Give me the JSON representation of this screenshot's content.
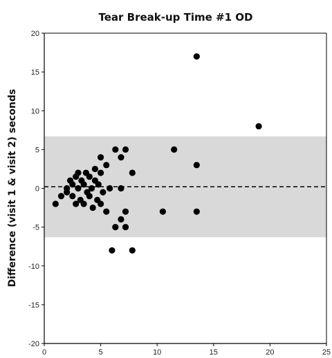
{
  "chart_data": {
    "type": "scatter",
    "title": "Tear Break-up Time #1 OD",
    "xlabel": "",
    "ylabel": "Difference (visit 1 & visit 2) seconds",
    "xlim": [
      0,
      25
    ],
    "ylim": [
      -20,
      20
    ],
    "xticks": [
      0,
      5,
      10,
      15,
      20,
      25
    ],
    "yticks": [
      -20,
      -15,
      -10,
      -5,
      0,
      5,
      10,
      15,
      20
    ],
    "grid": false,
    "limits_band": {
      "lower": -6.3,
      "upper": 6.7,
      "color": "#d9d9d9"
    },
    "mean_line": {
      "y": 0.2,
      "style": "dashed"
    },
    "marker_color": "#000000",
    "points": [
      {
        "x": 1.0,
        "y": -2.0
      },
      {
        "x": 1.5,
        "y": -1.0
      },
      {
        "x": 2.0,
        "y": 0.0
      },
      {
        "x": 2.0,
        "y": -0.5
      },
      {
        "x": 2.3,
        "y": 1.0
      },
      {
        "x": 2.5,
        "y": 0.5
      },
      {
        "x": 2.5,
        "y": -1.0
      },
      {
        "x": 2.8,
        "y": 1.5
      },
      {
        "x": 2.8,
        "y": -2.0
      },
      {
        "x": 3.0,
        "y": 0.0
      },
      {
        "x": 3.0,
        "y": 2.0
      },
      {
        "x": 3.2,
        "y": -1.5
      },
      {
        "x": 3.3,
        "y": 1.0
      },
      {
        "x": 3.5,
        "y": 0.5
      },
      {
        "x": 3.5,
        "y": -2.0
      },
      {
        "x": 3.7,
        "y": 2.0
      },
      {
        "x": 3.8,
        "y": -0.5
      },
      {
        "x": 4.0,
        "y": 1.5
      },
      {
        "x": 4.0,
        "y": -1.0
      },
      {
        "x": 4.2,
        "y": 0.0
      },
      {
        "x": 4.3,
        "y": -2.5
      },
      {
        "x": 4.5,
        "y": 2.5
      },
      {
        "x": 4.5,
        "y": 1.0
      },
      {
        "x": 4.7,
        "y": -1.5
      },
      {
        "x": 4.8,
        "y": 0.5
      },
      {
        "x": 5.0,
        "y": 4.0
      },
      {
        "x": 5.0,
        "y": 2.0
      },
      {
        "x": 5.0,
        "y": -2.0
      },
      {
        "x": 5.2,
        "y": -0.5
      },
      {
        "x": 5.5,
        "y": 3.0
      },
      {
        "x": 5.5,
        "y": -3.0
      },
      {
        "x": 5.8,
        "y": 0.0
      },
      {
        "x": 6.0,
        "y": -8.0
      },
      {
        "x": 6.3,
        "y": 5.0
      },
      {
        "x": 6.3,
        "y": -5.0
      },
      {
        "x": 6.8,
        "y": 4.0
      },
      {
        "x": 6.8,
        "y": 0.0
      },
      {
        "x": 6.8,
        "y": -4.0
      },
      {
        "x": 7.2,
        "y": 5.0
      },
      {
        "x": 7.2,
        "y": -3.0
      },
      {
        "x": 7.2,
        "y": -5.0
      },
      {
        "x": 7.8,
        "y": 2.0
      },
      {
        "x": 7.8,
        "y": -8.0
      },
      {
        "x": 10.5,
        "y": -3.0
      },
      {
        "x": 11.5,
        "y": 5.0
      },
      {
        "x": 13.5,
        "y": 17.0
      },
      {
        "x": 13.5,
        "y": 3.0
      },
      {
        "x": 13.5,
        "y": -3.0
      },
      {
        "x": 19.0,
        "y": 8.0
      }
    ]
  }
}
